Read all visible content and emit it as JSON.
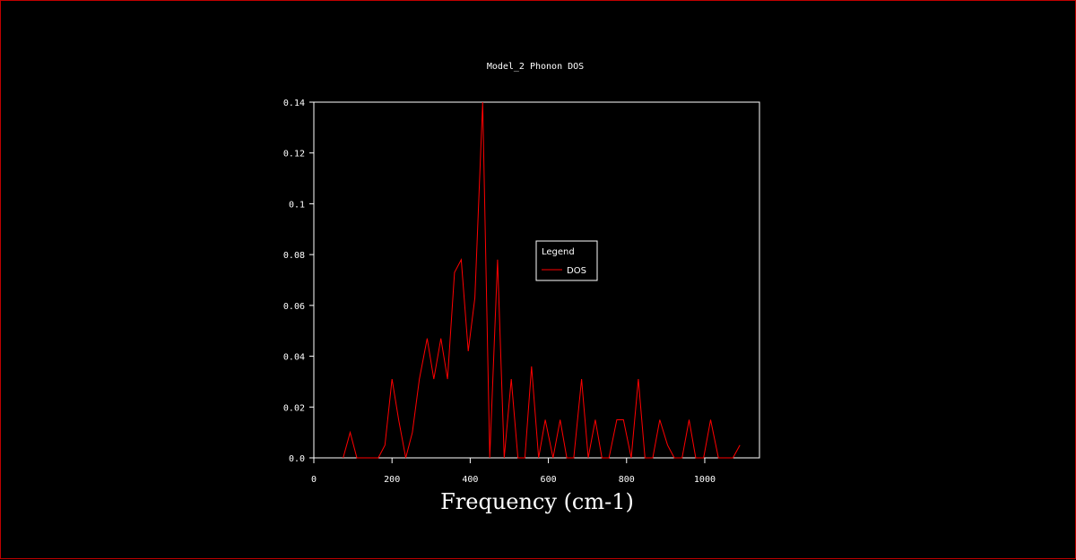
{
  "chart_data": {
    "type": "line",
    "title": "Model_2 Phonon DOS",
    "xlabel": "Frequency (cm-1)",
    "ylabel": "",
    "xlim": [
      0,
      1140
    ],
    "ylim": [
      0,
      0.14
    ],
    "x_ticks": [
      0,
      200,
      400,
      600,
      800,
      1000
    ],
    "x_tick_labels": [
      "0",
      "200",
      "400",
      "600",
      "800",
      "1000"
    ],
    "y_ticks": [
      0,
      0.02,
      0.04,
      0.06,
      0.08,
      0.1,
      0.12,
      0.14
    ],
    "y_tick_labels": [
      "0.0",
      "0.02",
      "0.04",
      "0.06",
      "0.08",
      "0.1",
      "0.12",
      "0.14"
    ],
    "grid": false,
    "legend": {
      "title": "Legend",
      "position": "center-right"
    },
    "series": [
      {
        "name": "DOS",
        "color": "#ff0000",
        "x": [
          75,
          93,
          110,
          130,
          165,
          182,
          200,
          217,
          235,
          252,
          270,
          290,
          307,
          325,
          342,
          360,
          377,
          395,
          412,
          432,
          450,
          470,
          487,
          505,
          522,
          540,
          557,
          575,
          592,
          612,
          630,
          647,
          665,
          685,
          702,
          720,
          737,
          755,
          775,
          792,
          812,
          830,
          847,
          867,
          885,
          905,
          922,
          942,
          960,
          977,
          997,
          1015,
          1035,
          1052,
          1072,
          1090
        ],
        "y": [
          0.0,
          0.01,
          0.0,
          0.0,
          0.0,
          0.005,
          0.031,
          0.015,
          0.0,
          0.01,
          0.031,
          0.047,
          0.031,
          0.047,
          0.031,
          0.073,
          0.078,
          0.042,
          0.063,
          0.14,
          0.0,
          0.078,
          0.0,
          0.031,
          0.0,
          0.0,
          0.036,
          0.0,
          0.015,
          0.0,
          0.015,
          0.0,
          0.0,
          0.031,
          0.0,
          0.015,
          0.0,
          0.0,
          0.015,
          0.015,
          0.0,
          0.031,
          0.0,
          0.0,
          0.015,
          0.005,
          0.0,
          0.0,
          0.015,
          0.0,
          0.0,
          0.015,
          0.0,
          0.0,
          0.0,
          0.005
        ]
      }
    ]
  },
  "colors": {
    "background": "#000000",
    "frame_border": "#c00000",
    "axis": "#ffffff",
    "series": "#ff0000"
  }
}
